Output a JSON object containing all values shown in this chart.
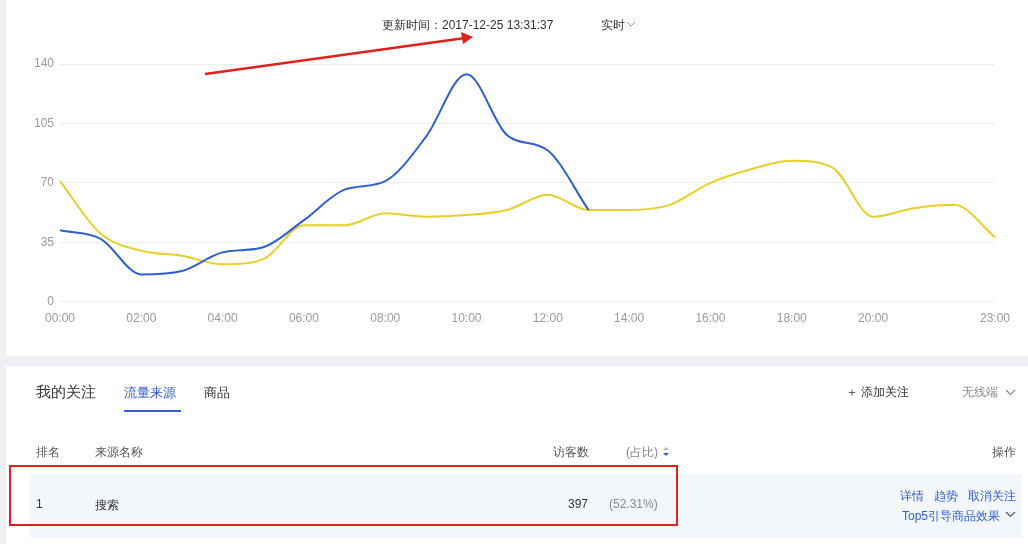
{
  "chart_data": {
    "type": "line",
    "title": "更新时间：2017-12-25 13:31:37",
    "categories": [
      "00:00",
      null,
      "02:00",
      null,
      "04:00",
      null,
      "06:00",
      null,
      "08:00",
      null,
      "10:00",
      null,
      "12:00",
      null,
      "14:00",
      null,
      "16:00",
      null,
      "18:00",
      null,
      "20:00",
      null,
      null,
      "23:00"
    ],
    "series": [
      {
        "color": "#2f5fd0",
        "values": [
          42,
          37,
          16,
          18,
          29,
          32,
          48,
          66,
          71,
          97,
          134,
          98,
          89,
          54,
          null,
          null,
          null,
          null,
          null,
          null,
          null,
          null,
          null,
          null
        ]
      },
      {
        "color": "#e8cf2a",
        "values": [
          71,
          40,
          30,
          27,
          22,
          25,
          45,
          45,
          52,
          50,
          51,
          54,
          63,
          54,
          54,
          57,
          70,
          78,
          83,
          79,
          50,
          55,
          57,
          38
        ]
      }
    ],
    "ylim": [
      0,
      140
    ],
    "yticks": [
      0,
      35,
      70,
      105,
      140
    ],
    "grid": "y",
    "marker": "none",
    "annotations": [
      "实时",
      "我的关注",
      "流量来源",
      "商品",
      "＋ 添加关注",
      "无线端",
      "排名",
      "来源名称",
      "访客数",
      "(占比)",
      "操作",
      "1",
      "搜索",
      "397",
      "(52.31%)",
      "详情",
      "趋势",
      "取消关注",
      "Top5引导商品效果"
    ]
  }
}
